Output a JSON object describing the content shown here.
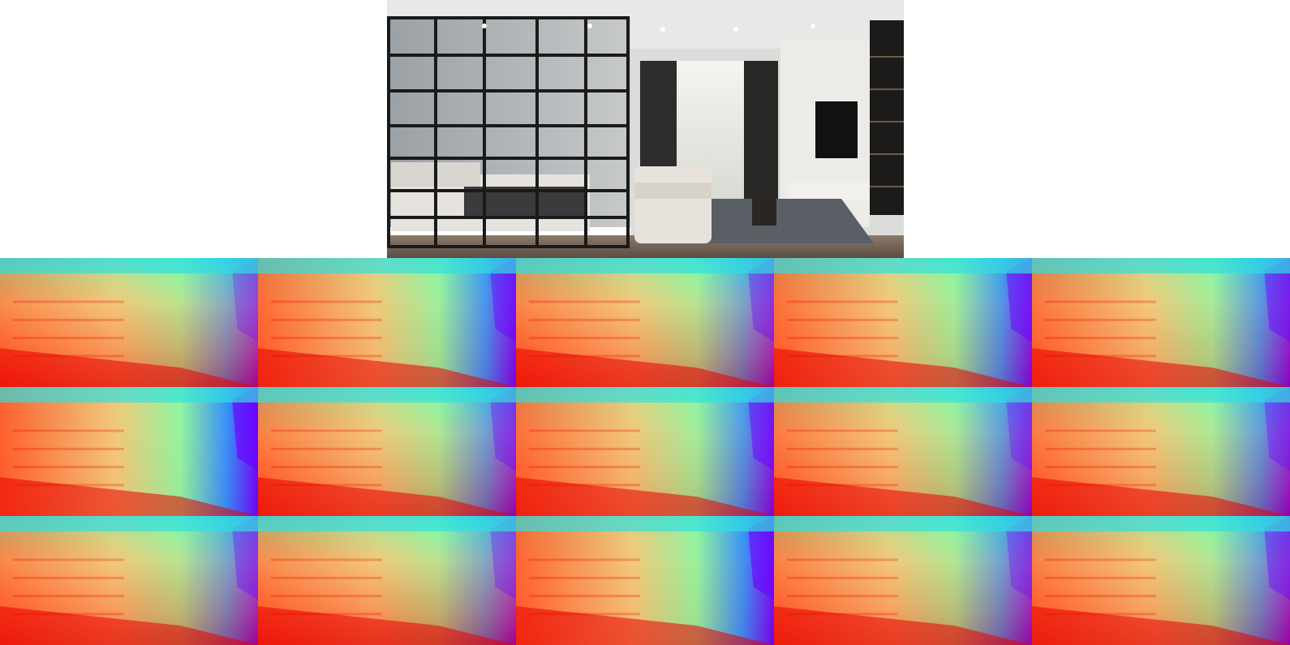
{
  "figure": {
    "photo": {
      "subject": "interior-room-photo"
    },
    "depth_maps": {
      "rows": 3,
      "cols": 5,
      "colormap": [
        "#6a00ff",
        "#2f8cff",
        "#32e0e0",
        "#8ff5a0",
        "#f2c87a",
        "#ff5a2a",
        "#e80000"
      ],
      "tiles": [
        {
          "variant": "left-near",
          "near_side": 0.55,
          "far_boost": 0.25
        },
        {
          "variant": "bottom-near",
          "near_side": 0.85,
          "far_boost": 0.45
        },
        {
          "variant": "upper-left-near",
          "near_side": 0.6,
          "far_boost": 0.35
        },
        {
          "variant": "bottom-near",
          "near_side": 0.8,
          "far_boost": 0.5
        },
        {
          "variant": "bottom-near",
          "near_side": 0.75,
          "far_boost": 0.45
        },
        {
          "variant": "bottom-near-cool",
          "near_side": 0.95,
          "far_boost": 0.65
        },
        {
          "variant": "center-band",
          "near_side": 0.65,
          "far_boost": 0.35
        },
        {
          "variant": "bottom-near",
          "near_side": 0.8,
          "far_boost": 0.5
        },
        {
          "variant": "warm-center",
          "near_side": 0.7,
          "far_boost": 0.3
        },
        {
          "variant": "warm-center",
          "near_side": 0.7,
          "far_boost": 0.35
        },
        {
          "variant": "left-near",
          "near_side": 0.6,
          "far_boost": 0.35
        },
        {
          "variant": "top-band",
          "near_side": 0.55,
          "far_boost": 0.3
        },
        {
          "variant": "bottom-near-cool",
          "near_side": 0.9,
          "far_boost": 0.6
        },
        {
          "variant": "warm-center",
          "near_side": 0.65,
          "far_boost": 0.3
        },
        {
          "variant": "left-near",
          "near_side": 0.65,
          "far_boost": 0.4
        }
      ]
    }
  }
}
